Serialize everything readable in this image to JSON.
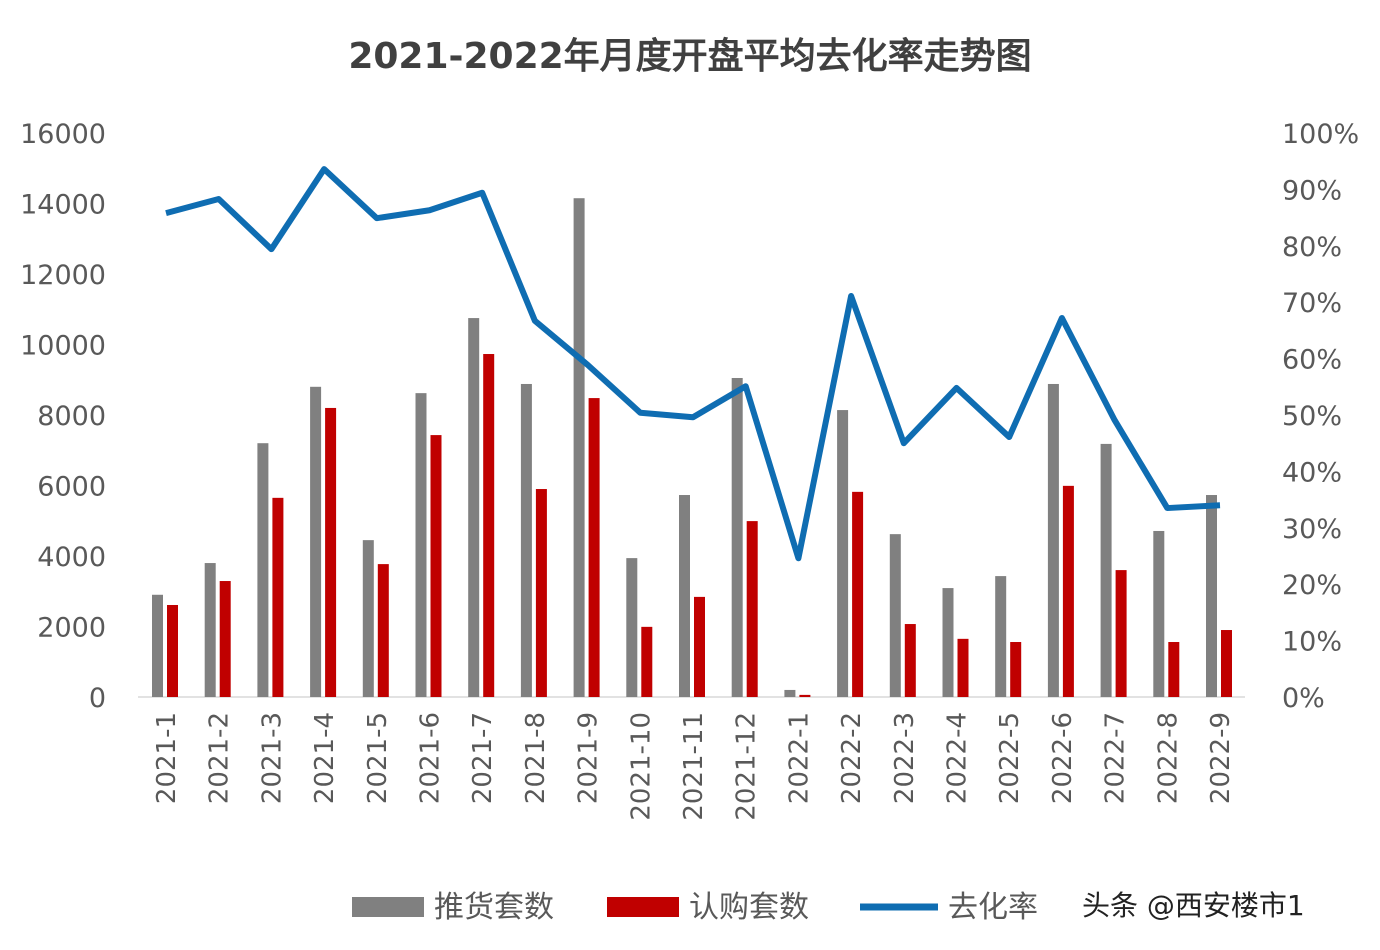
{
  "chart_data": {
    "type": "bar+line",
    "title": "2021-2022年月度开盘平均去化率走势图",
    "categories": [
      "2021-1",
      "2021-2",
      "2021-3",
      "2021-4",
      "2021-5",
      "2021-6",
      "2021-7",
      "2021-8",
      "2021-9",
      "2021-10",
      "2021-11",
      "2021-12",
      "2022-1",
      "2022-2",
      "2022-3",
      "2022-4",
      "2022-5",
      "2022-6",
      "2022-7",
      "2022-8",
      "2022-9"
    ],
    "series": [
      {
        "name": "推货套数",
        "type": "bar",
        "axis": "left",
        "color": "#808080",
        "values": [
          2900,
          3800,
          7200,
          8800,
          4450,
          8620,
          10750,
          8880,
          14150,
          3940,
          5730,
          9050,
          200,
          8140,
          4620,
          3090,
          3430,
          8880,
          7180,
          4710,
          5730
        ]
      },
      {
        "name": "认购套数",
        "type": "bar",
        "axis": "left",
        "color": "#c00000",
        "values": [
          2610,
          3290,
          5650,
          8200,
          3770,
          7430,
          9730,
          5900,
          8480,
          1990,
          2840,
          4990,
          60,
          5820,
          2070,
          1650,
          1560,
          5990,
          3600,
          1560,
          1900
        ]
      },
      {
        "name": "去化率",
        "type": "line",
        "axis": "right",
        "color": "#0f6db2",
        "values": [
          85.8,
          88.3,
          79.4,
          93.6,
          84.9,
          86.3,
          89.4,
          66.7,
          58.9,
          50.4,
          49.6,
          55.1,
          24.6,
          71.1,
          45.0,
          54.8,
          46.1,
          67.2,
          49.1,
          33.5,
          34.0
        ]
      }
    ],
    "y_left": {
      "range": [
        0,
        16000
      ],
      "ticks": [
        "0",
        "2000",
        "4000",
        "6000",
        "8000",
        "10000",
        "12000",
        "14000",
        "16000"
      ]
    },
    "y_right": {
      "range": [
        0,
        100
      ],
      "unit": "%",
      "ticks": [
        "0%",
        "10%",
        "20%",
        "30%",
        "40%",
        "50%",
        "60%",
        "70%",
        "80%",
        "90%",
        "100%"
      ]
    },
    "grid": false,
    "legend_position": "bottom"
  },
  "watermark": "头条 @西安楼市1"
}
